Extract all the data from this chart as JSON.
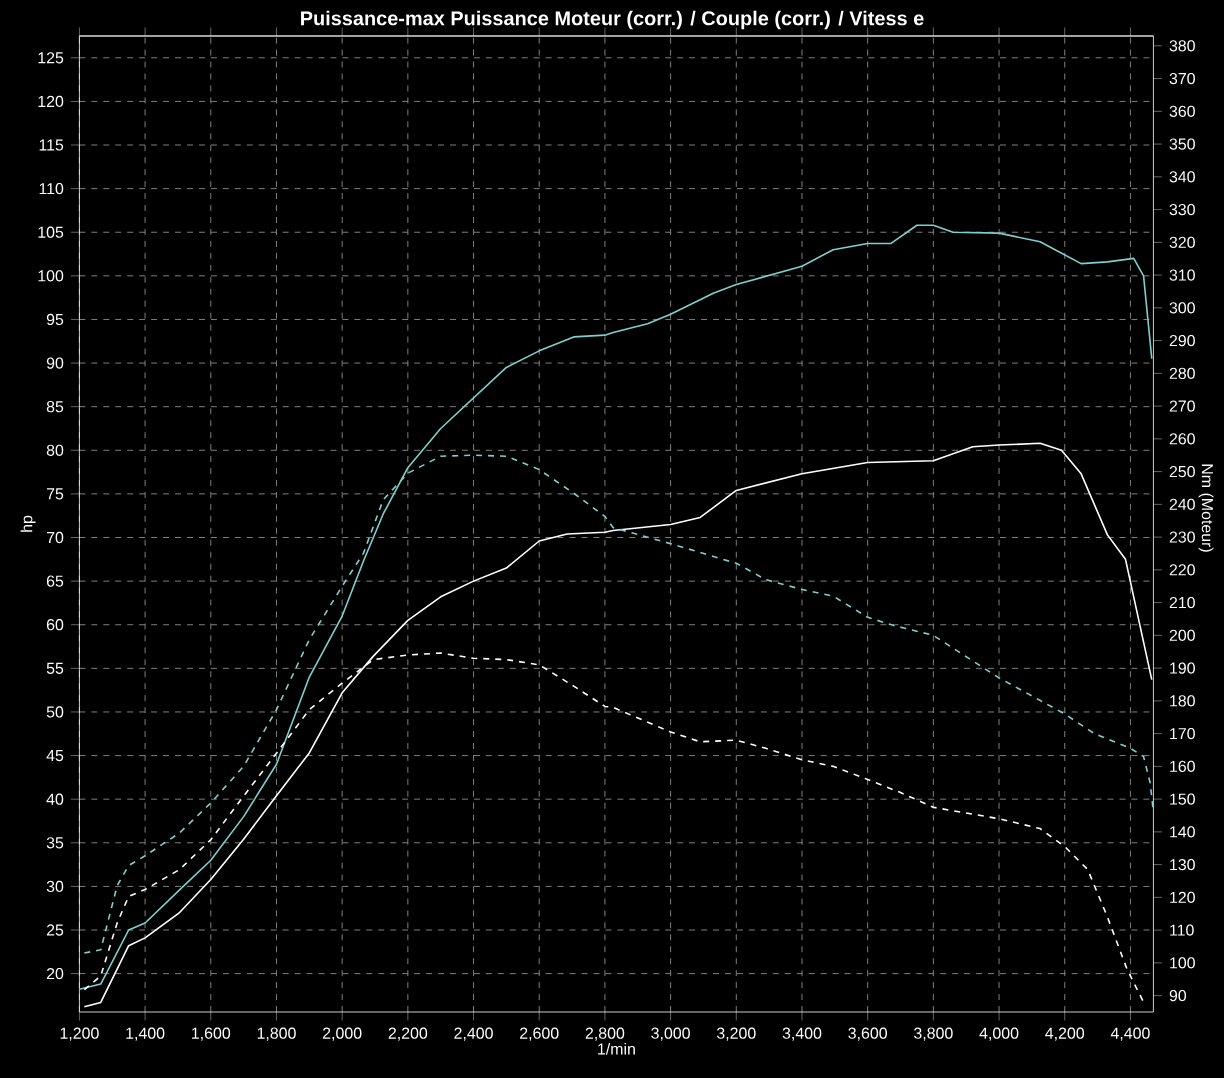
{
  "chart_data": {
    "type": "line",
    "title": "Puissance-max Puissance Moteur (corr.) / Couple (corr.) / Vitess e",
    "xlabel": "1/min",
    "ylabel": "hp",
    "y2label": "Nm (Moteur)",
    "xlim": [
      1200,
      4470
    ],
    "ylim": [
      15.6,
      127.5
    ],
    "y2lim": [
      85,
      383
    ],
    "xticks": [
      {
        "value": 1200,
        "label": "1,200"
      },
      {
        "value": 1400,
        "label": "1,400"
      },
      {
        "value": 1600,
        "label": "1,600"
      },
      {
        "value": 1800,
        "label": "1,800"
      },
      {
        "value": 2000,
        "label": "2,000"
      },
      {
        "value": 2200,
        "label": "2,200"
      },
      {
        "value": 2400,
        "label": "2,400"
      },
      {
        "value": 2600,
        "label": "2,600"
      },
      {
        "value": 2800,
        "label": "2,800"
      },
      {
        "value": 3000,
        "label": "3,000"
      },
      {
        "value": 3200,
        "label": "3,200"
      },
      {
        "value": 3400,
        "label": "3,400"
      },
      {
        "value": 3600,
        "label": "3,600"
      },
      {
        "value": 3800,
        "label": "3,800"
      },
      {
        "value": 4000,
        "label": "4,000"
      },
      {
        "value": 4200,
        "label": "4,200"
      },
      {
        "value": 4400,
        "label": "4,400"
      }
    ],
    "yticks": [
      20,
      25,
      30,
      35,
      40,
      45,
      50,
      55,
      60,
      65,
      70,
      75,
      80,
      85,
      90,
      95,
      100,
      105,
      110,
      115,
      120,
      125
    ],
    "y2ticks": [
      90,
      100,
      110,
      120,
      130,
      140,
      150,
      160,
      170,
      180,
      190,
      200,
      210,
      220,
      230,
      240,
      250,
      260,
      270,
      280,
      290,
      300,
      310,
      320,
      330,
      340,
      350,
      360,
      370,
      380
    ],
    "grid": true,
    "marker": "none",
    "series": [
      {
        "color": "#7fcfcf",
        "line_style": "solid",
        "x": [
          1200,
          1265,
          1350,
          1400,
          1505,
          1600,
          1700,
          1800,
          1900,
          2000,
          2065,
          2125,
          2200,
          2300,
          2400,
          2500,
          2600,
          2705,
          2800,
          2825,
          2930,
          3000,
          3130,
          3200,
          3400,
          3495,
          3600,
          3670,
          3750,
          3800,
          3860,
          4000,
          4125,
          4250,
          4330,
          4410,
          4440,
          4465
        ],
        "values": [
          18.2,
          18.8,
          25,
          25.8,
          29.6,
          33,
          38,
          44,
          54,
          61,
          67.3,
          72.7,
          78,
          82.5,
          86,
          89.5,
          91.4,
          93,
          93.2,
          93.5,
          94.5,
          95.6,
          98,
          99,
          101.1,
          103,
          103.7,
          103.7,
          105.8,
          105.8,
          105,
          104.9,
          103.9,
          101.4,
          101.6,
          102,
          100,
          90.5
        ]
      },
      {
        "color": "#ffffff",
        "line_style": "solid",
        "x": [
          1215,
          1265,
          1350,
          1400,
          1505,
          1600,
          1700,
          1800,
          1900,
          2000,
          2095,
          2200,
          2300,
          2400,
          2500,
          2600,
          2685,
          2800,
          2825,
          3000,
          3090,
          3200,
          3400,
          3600,
          3800,
          3920,
          4000,
          4125,
          4190,
          4250,
          4330,
          4385,
          4465
        ],
        "values": [
          16.2,
          16.7,
          23.2,
          24.1,
          27,
          30.8,
          35.4,
          40.4,
          45.3,
          52.2,
          56.4,
          60.5,
          63.2,
          65,
          66.5,
          69.6,
          70.4,
          70.6,
          70.8,
          71.5,
          72.3,
          75.4,
          77.3,
          78.6,
          78.8,
          80.4,
          80.6,
          80.8,
          80,
          77.3,
          70.3,
          67.5,
          53.7
        ]
      },
      {
        "color": "#7fcfcf",
        "line_style": "dashed",
        "axis": "y2",
        "x": [
          1215,
          1265,
          1315,
          1350,
          1400,
          1505,
          1600,
          1700,
          1800,
          1900,
          2000,
          2065,
          2125,
          2200,
          2300,
          2400,
          2500,
          2600,
          2705,
          2800,
          2825,
          3000,
          3200,
          3290,
          3400,
          3495,
          3600,
          3680,
          3800,
          4000,
          4200,
          4290,
          4400,
          4440,
          4460,
          4470
        ],
        "values": [
          103,
          104,
          123.6,
          129.7,
          132.7,
          139.7,
          148.8,
          160,
          177.3,
          198.7,
          215,
          225.1,
          241.4,
          249.5,
          254.7,
          255,
          254.7,
          250.6,
          243.4,
          236.3,
          232.9,
          228,
          222,
          217,
          214,
          212,
          205.5,
          203,
          200,
          187,
          176,
          170,
          165.5,
          163,
          155,
          146
        ]
      },
      {
        "color": "#ffffff",
        "line_style": "dashed",
        "axis": "y2",
        "x": [
          1215,
          1265,
          1315,
          1350,
          1400,
          1505,
          1600,
          1700,
          1800,
          1900,
          2000,
          2095,
          2200,
          2300,
          2400,
          2500,
          2600,
          2705,
          2800,
          2825,
          3000,
          3090,
          3200,
          3290,
          3400,
          3495,
          3600,
          3700,
          3800,
          4000,
          4125,
          4200,
          4270,
          4330,
          4390,
          4440
        ],
        "values": [
          91.8,
          96,
          112.2,
          120.3,
          122.4,
          128.5,
          137.6,
          150.9,
          164,
          177.3,
          185.4,
          192.6,
          194,
          194.6,
          193,
          192.6,
          191,
          184.5,
          178.3,
          178,
          170.5,
          167.5,
          168,
          165.5,
          162,
          160,
          156,
          152,
          147.5,
          144,
          141,
          135.5,
          128.5,
          114,
          98,
          88
        ]
      }
    ]
  }
}
